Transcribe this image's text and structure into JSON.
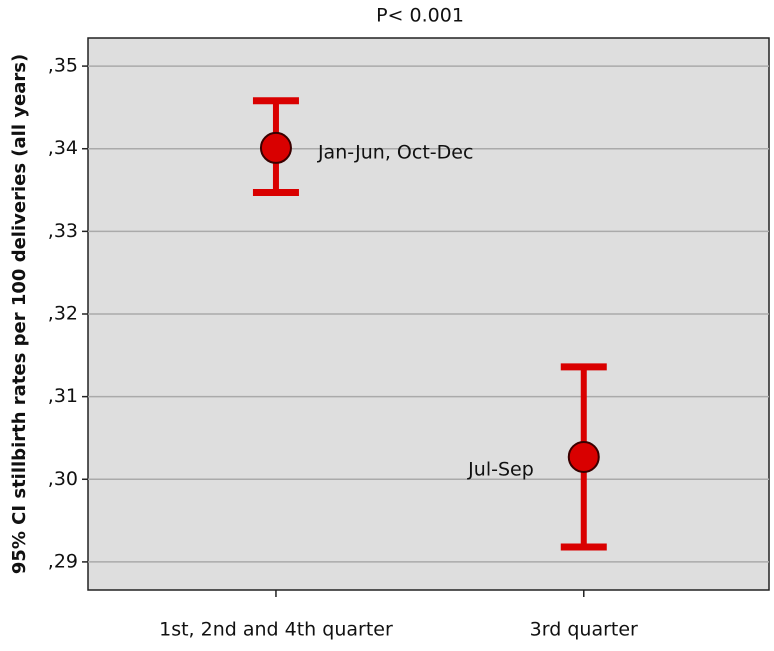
{
  "chart_data": {
    "type": "errorbar",
    "title": "P< 0.001",
    "y_label": "95% CI stillbirth rates per 100 deliveries (all years)",
    "categories": [
      "1st, 2nd and 4th quarter",
      "3rd quarter"
    ],
    "values": [
      0.3401,
      0.3027
    ],
    "lower": [
      0.3347,
      0.2918
    ],
    "upper": [
      0.3458,
      0.3136
    ],
    "point_labels": [
      "Jan-Jun, Oct-Dec",
      "Jul-Sep"
    ],
    "color": "#d90000",
    "ylim": [
      0.2866,
      0.3534
    ],
    "yticks": [
      {
        "value": 0.29,
        "label": ",29"
      },
      {
        "value": 0.3,
        "label": ",30"
      },
      {
        "value": 0.31,
        "label": ",31"
      },
      {
        "value": 0.32,
        "label": ",32"
      },
      {
        "value": 0.33,
        "label": ",33"
      },
      {
        "value": 0.34,
        "label": ",34"
      },
      {
        "value": 0.35,
        "label": ",35"
      }
    ],
    "grid": true
  }
}
